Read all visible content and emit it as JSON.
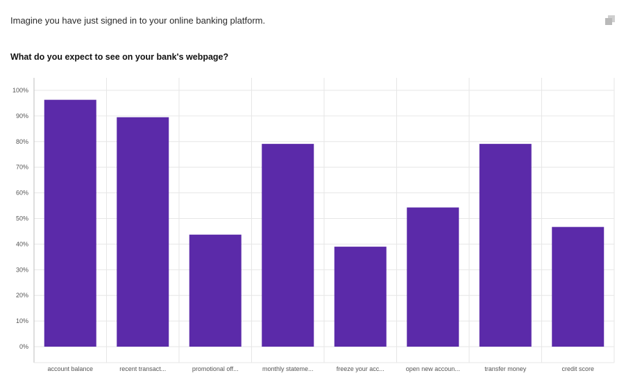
{
  "header": {
    "intro_text": "Imagine you have just signed in to your online banking platform.",
    "copy_icon": "copy-icon"
  },
  "question": {
    "title": "What do you expect to see on your bank's webpage?"
  },
  "colors": {
    "bar": "#5b2aa9",
    "grid": "#e6e6e6",
    "axis": "#bdbdbd"
  },
  "chart_data": {
    "type": "bar",
    "title": "What do you expect to see on your bank's webpage?",
    "xlabel": "",
    "ylabel": "",
    "categories": [
      "account balance",
      "recent transact...",
      "promotional off...",
      "monthly stateme...",
      "freeze your acc...",
      "open new accoun...",
      "transfer money",
      "credit score"
    ],
    "values": [
      96.3,
      89.5,
      43.7,
      79.1,
      39.0,
      54.3,
      79.1,
      46.7
    ],
    "ylim": [
      0,
      100
    ],
    "yticks": [
      0,
      10,
      20,
      30,
      40,
      50,
      60,
      70,
      80,
      90,
      100
    ],
    "ytick_suffix": "%",
    "grid": true,
    "legend": "none"
  }
}
